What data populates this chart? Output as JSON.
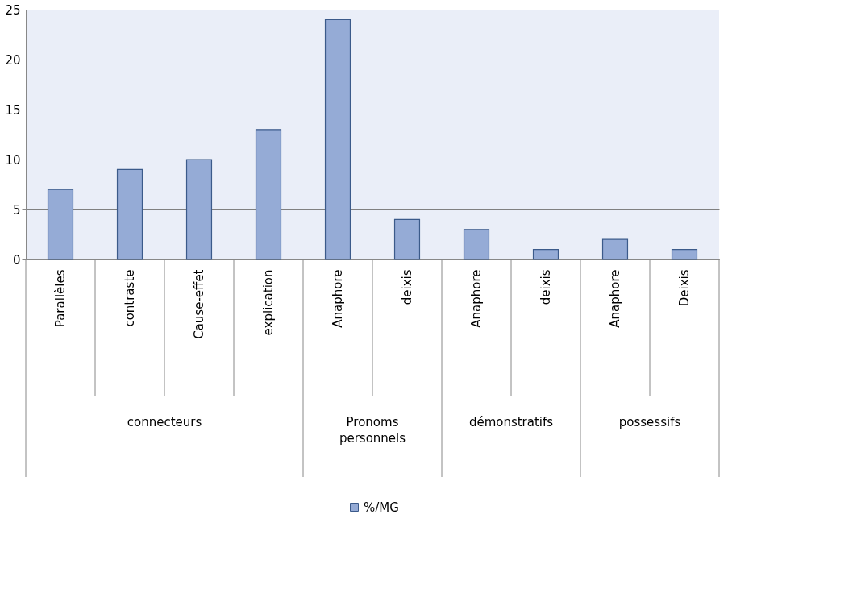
{
  "chart_data": {
    "type": "bar",
    "categories": [
      "Parallèles",
      "contraste",
      "Cause-effet",
      "explication",
      "Anaphore",
      "deixis",
      "Anaphore",
      "deixis",
      "Anaphore",
      "Deixis"
    ],
    "series": [
      {
        "name": "%/MG",
        "color": "#95abd6",
        "values": [
          7,
          9,
          10,
          13,
          24,
          4,
          3,
          1,
          2,
          1
        ]
      }
    ],
    "ylim": [
      0,
      25
    ],
    "yticks": [
      0,
      5,
      10,
      15,
      20,
      25
    ],
    "grid": "y",
    "legend": "bottom",
    "annotations": [
      "connecteurs",
      "Pronoms personnels",
      "démonstratifs",
      "possessifs"
    ]
  }
}
